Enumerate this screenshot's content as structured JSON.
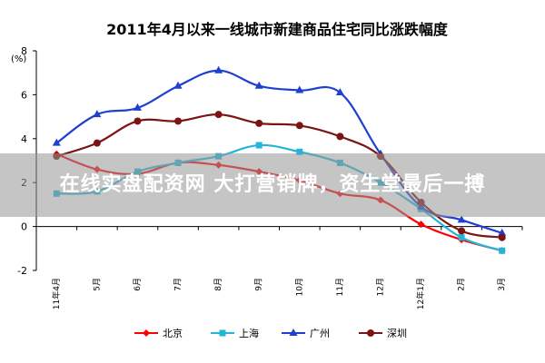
{
  "overlay": {
    "caption": "在线实盘配资网 大打营销牌，资生堂最后一搏"
  },
  "chart_data": {
    "type": "line",
    "title": "2011年4月以来一线城市新建商品住宅同比涨跌幅度",
    "ylabel": "(%)",
    "xlabel": "",
    "ylim": [
      -2,
      8
    ],
    "yticks": [
      -2,
      0,
      2,
      4,
      6,
      8
    ],
    "categories": [
      "11年4月",
      "5月",
      "6月",
      "7月",
      "8月",
      "9月",
      "10月",
      "11月",
      "12月",
      "12年1月",
      "2月",
      "3月"
    ],
    "grid": false,
    "legend": "bottom",
    "series": [
      {
        "name": "北京",
        "color": "#ff0000",
        "marker": "diamond",
        "values": [
          3.3,
          2.6,
          2.4,
          2.9,
          2.8,
          2.5,
          2.1,
          1.5,
          1.2,
          0.1,
          -0.6,
          -1.1
        ]
      },
      {
        "name": "上海",
        "color": "#22b5d8",
        "marker": "square",
        "values": [
          1.5,
          1.6,
          2.5,
          2.9,
          3.2,
          3.7,
          3.4,
          2.9,
          2.0,
          0.8,
          -0.5,
          -1.1
        ]
      },
      {
        "name": "广州",
        "color": "#1f3fd1",
        "marker": "triangle",
        "values": [
          3.8,
          5.1,
          5.4,
          6.4,
          7.1,
          6.4,
          6.2,
          6.1,
          3.3,
          0.9,
          0.3,
          -0.3
        ]
      },
      {
        "name": "深圳",
        "color": "#7b1414",
        "marker": "circle",
        "values": [
          3.2,
          3.8,
          4.8,
          4.8,
          5.1,
          4.7,
          4.6,
          4.1,
          3.2,
          1.1,
          -0.2,
          -0.5
        ]
      }
    ]
  }
}
